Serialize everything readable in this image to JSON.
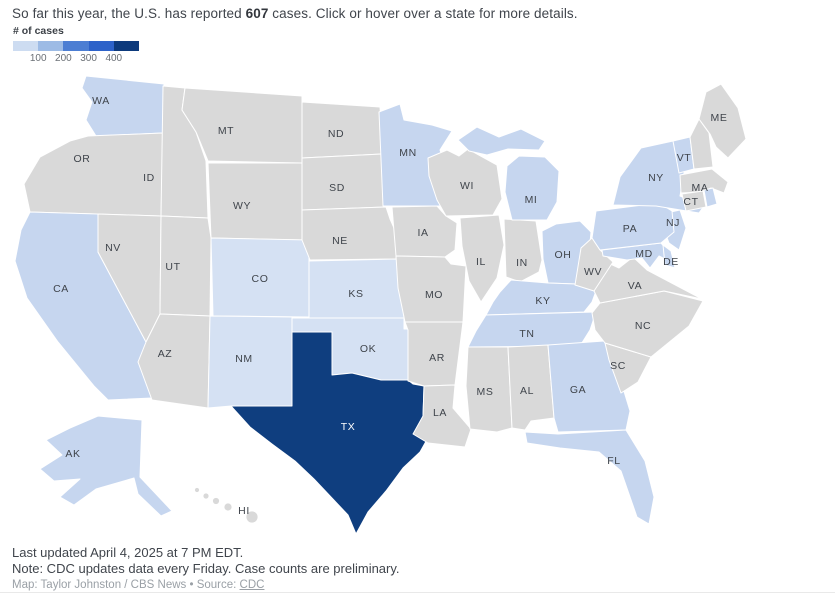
{
  "header": {
    "prefix": "So far this year, the U.S. has reported ",
    "count": "607",
    "suffix": " cases. Click or hover over a state for more details."
  },
  "legend": {
    "title": "# of cases",
    "colors": [
      "#cddcf1",
      "#9dbbe5",
      "#4c7ed3",
      "#2d62c9",
      "#0d3a7c"
    ],
    "ticks": [
      "100",
      "200",
      "300",
      "400"
    ]
  },
  "map": {
    "palette": {
      "none": "#d9d9d9",
      "pale": "#d5e1f3",
      "low": "#c6d6ef",
      "high": "#0f3e7f"
    },
    "border_color": "#ffffff",
    "label_color": "#3f444b",
    "label_color_on_dark": "#ffffff",
    "states": [
      {
        "abbr": "WA",
        "label": "WA",
        "level": "low"
      },
      {
        "abbr": "OR",
        "label": "OR",
        "level": "none"
      },
      {
        "abbr": "CA",
        "label": "CA",
        "level": "low"
      },
      {
        "abbr": "NV",
        "label": "NV",
        "level": "none"
      },
      {
        "abbr": "ID",
        "label": "ID",
        "level": "none"
      },
      {
        "abbr": "MT",
        "label": "MT",
        "level": "none"
      },
      {
        "abbr": "WY",
        "label": "WY",
        "level": "none"
      },
      {
        "abbr": "UT",
        "label": "UT",
        "level": "none"
      },
      {
        "abbr": "AZ",
        "label": "AZ",
        "level": "none"
      },
      {
        "abbr": "CO",
        "label": "CO",
        "level": "pale"
      },
      {
        "abbr": "NM",
        "label": "NM",
        "level": "pale"
      },
      {
        "abbr": "ND",
        "label": "ND",
        "level": "none"
      },
      {
        "abbr": "SD",
        "label": "SD",
        "level": "none"
      },
      {
        "abbr": "NE",
        "label": "NE",
        "level": "none"
      },
      {
        "abbr": "KS",
        "label": "KS",
        "level": "pale"
      },
      {
        "abbr": "OK",
        "label": "OK",
        "level": "pale"
      },
      {
        "abbr": "TX",
        "label": "TX",
        "level": "high"
      },
      {
        "abbr": "MN",
        "label": "MN",
        "level": "low"
      },
      {
        "abbr": "IA",
        "label": "IA",
        "level": "none"
      },
      {
        "abbr": "MO",
        "label": "MO",
        "level": "none"
      },
      {
        "abbr": "AR",
        "label": "AR",
        "level": "none"
      },
      {
        "abbr": "LA",
        "label": "LA",
        "level": "none"
      },
      {
        "abbr": "WI",
        "label": "WI",
        "level": "none"
      },
      {
        "abbr": "IL",
        "label": "IL",
        "level": "none"
      },
      {
        "abbr": "IN",
        "label": "IN",
        "level": "none"
      },
      {
        "abbr": "MI",
        "label": "MI",
        "level": "low"
      },
      {
        "abbr": "OH",
        "label": "OH",
        "level": "low"
      },
      {
        "abbr": "KY",
        "label": "KY",
        "level": "low"
      },
      {
        "abbr": "TN",
        "label": "TN",
        "level": "low"
      },
      {
        "abbr": "MS",
        "label": "MS",
        "level": "none"
      },
      {
        "abbr": "AL",
        "label": "AL",
        "level": "none"
      },
      {
        "abbr": "GA",
        "label": "GA",
        "level": "low"
      },
      {
        "abbr": "FL",
        "label": "FL",
        "level": "low"
      },
      {
        "abbr": "SC",
        "label": "SC",
        "level": "none"
      },
      {
        "abbr": "NC",
        "label": "NC",
        "level": "none"
      },
      {
        "abbr": "VA",
        "label": "VA",
        "level": "none"
      },
      {
        "abbr": "WV",
        "label": "WV",
        "level": "none"
      },
      {
        "abbr": "MD",
        "label": "MD",
        "level": "low"
      },
      {
        "abbr": "DE",
        "label": "DE",
        "level": "low"
      },
      {
        "abbr": "NJ",
        "label": "NJ",
        "level": "low"
      },
      {
        "abbr": "PA",
        "label": "PA",
        "level": "low"
      },
      {
        "abbr": "NY",
        "label": "NY",
        "level": "low"
      },
      {
        "abbr": "VT",
        "label": "VT",
        "level": "low"
      },
      {
        "abbr": "NH",
        "label": null,
        "level": "none"
      },
      {
        "abbr": "ME",
        "label": "ME",
        "level": "none"
      },
      {
        "abbr": "MA",
        "label": "MA",
        "level": "none"
      },
      {
        "abbr": "CT",
        "label": "CT",
        "level": "none"
      },
      {
        "abbr": "RI",
        "label": null,
        "level": "low"
      },
      {
        "abbr": "AK",
        "label": "AK",
        "level": "low"
      },
      {
        "abbr": "HI",
        "label": "HI",
        "level": "none"
      }
    ]
  },
  "footer": {
    "updated": "Last updated April 4, 2025 at 7 PM EDT.",
    "note": "Note: CDC updates data every Friday. Case counts are preliminary.",
    "credit_prefix": "Map: Taylor Johnston / CBS News • Source: ",
    "credit_link": "CDC"
  }
}
